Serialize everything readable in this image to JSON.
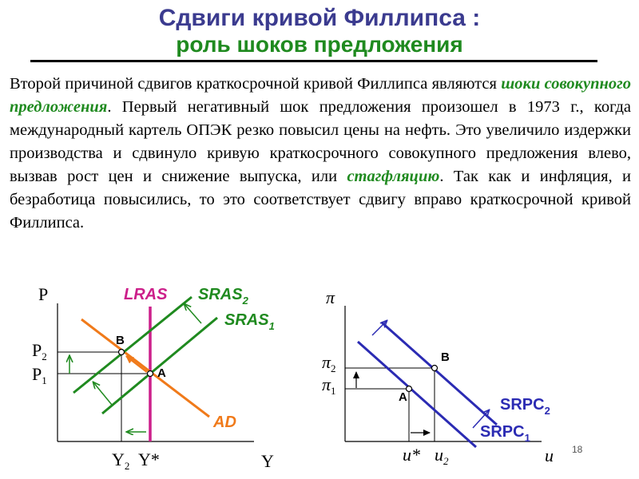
{
  "title": {
    "line1": "Сдвиги кривой Филлипса :",
    "line2": "роль шоков предложения"
  },
  "paragraph": {
    "t1": "Второй причиной сдвигов краткосрочной кривой Филлипса являются ",
    "h1": "шоки совокупного предложения",
    "t2": ". Первый негативный шок предложения произошел в 1973 г., когда международный картель ОПЭК резко повысил цены на нефть. Это увеличило издержки производства и сдвинуло кривую краткосрочного совокупного предложения влево, вызвав рост цен и снижение выпуска, или ",
    "h2": "стагфляцию",
    "t3": ". Так как и инфляция, и безработица повысились, то это соответствует сдвигу вправо краткосрочной кривой Филлипса."
  },
  "left_diagram": {
    "y_axis": "P",
    "x_axis": "Y",
    "p2": "P",
    "p2_sub": "2",
    "p1": "P",
    "p1_sub": "1",
    "y2": "Y",
    "y2_sub": "2",
    "ystar": "Y*",
    "lras": "LRAS",
    "sras2": "SRAS",
    "sras2_sub": "2",
    "sras1": "SRAS",
    "sras1_sub": "1",
    "ad": "AD",
    "point_a": "A",
    "point_b": "B"
  },
  "right_diagram": {
    "y_axis": "π",
    "x_axis": "u",
    "pi2": "π",
    "pi2_sub": "2",
    "pi1": "π",
    "pi1_sub": "1",
    "ustar": "u*",
    "u2": "u",
    "u2_sub": "2",
    "srpc2": "SRPC",
    "srpc2_sub": "2",
    "srpc1": "SRPC",
    "srpc1_sub": "1",
    "point_a": "A",
    "point_b": "B"
  },
  "page_number": "18",
  "colors": {
    "title": "#3b3b8f",
    "green": "#1f8a1f",
    "lras": "#cc1f8a",
    "ad": "#f07a1a",
    "srpc": "#2b2bb3"
  }
}
